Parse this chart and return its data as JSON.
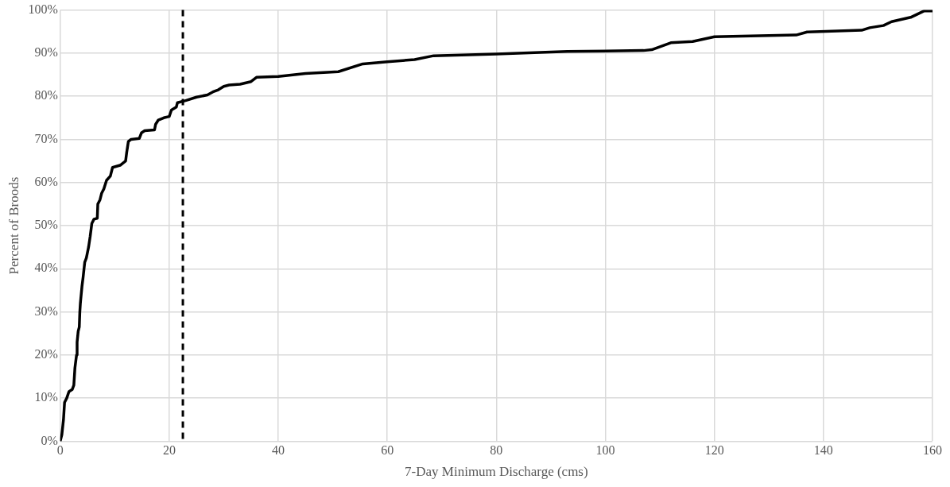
{
  "chart_data": {
    "type": "line",
    "xlabel": "7-Day Minimum Discharge (cms)",
    "ylabel": "Percent of Broods",
    "x": [
      0,
      0.3,
      0.6,
      0.8,
      1.2,
      1.6,
      2.2,
      2.5,
      2.7,
      3,
      3.1,
      3.3,
      3.5,
      3.6,
      3.7,
      4,
      4.2,
      4.5,
      4.8,
      5.2,
      5.5,
      5.8,
      6.2,
      6.8,
      6.9,
      7.3,
      7.6,
      8,
      8.5,
      9.2,
      9.6,
      11,
      12,
      12.2,
      12.5,
      13,
      14.5,
      14.9,
      15.5,
      17.3,
      17.5,
      18,
      19,
      20,
      20.4,
      21.3,
      21.5,
      23,
      25,
      27,
      28,
      29,
      30,
      31,
      33,
      35,
      36,
      40,
      45,
      51,
      55.5,
      60,
      65,
      68.5,
      80,
      93,
      107,
      108.5,
      112,
      116,
      120,
      135,
      137,
      147,
      148.5,
      151,
      152.5,
      156,
      158.5,
      160
    ],
    "series": [
      {
        "color": "#000000",
        "values": [
          0,
          1.5,
          5,
          9,
          10,
          11.5,
          12,
          13,
          17,
          20,
          23,
          25.5,
          26.5,
          30,
          32,
          36,
          38,
          41.5,
          42.5,
          45,
          47.5,
          50.5,
          51.5,
          51.7,
          55,
          56,
          57.5,
          58.5,
          60.5,
          61.5,
          63.5,
          64,
          65,
          67,
          69.5,
          70,
          70.2,
          71.5,
          72,
          72.2,
          73.5,
          74.5,
          75,
          75.3,
          76.8,
          77.5,
          78.5,
          79,
          79.8,
          80.3,
          81,
          81.5,
          82.3,
          82.6,
          82.8,
          83.4,
          84.4,
          84.6,
          85.3,
          85.7,
          87.5,
          88,
          88.5,
          89.4,
          89.8,
          90.4,
          90.6,
          90.8,
          92.4,
          92.7,
          93.8,
          94.2,
          94.9,
          95.3,
          95.9,
          96.4,
          97.3,
          98.3,
          99.8,
          99.8
        ]
      }
    ],
    "xlim": [
      0,
      160
    ],
    "xticks": [
      0,
      20,
      40,
      60,
      80,
      100,
      120,
      140,
      160
    ],
    "ylim": [
      0,
      100
    ],
    "yticks": [
      {
        "value": 0,
        "label": "0%"
      },
      {
        "value": 10,
        "label": "10%"
      },
      {
        "value": 20,
        "label": "20%"
      },
      {
        "value": 30,
        "label": "30%"
      },
      {
        "value": 40,
        "label": "40%"
      },
      {
        "value": 50,
        "label": "50%"
      },
      {
        "value": 60,
        "label": "60%"
      },
      {
        "value": 70,
        "label": "70%"
      },
      {
        "value": 80,
        "label": "80%"
      },
      {
        "value": 90,
        "label": "90%"
      },
      {
        "value": 100,
        "label": "100%"
      }
    ],
    "ref_lines": [
      {
        "axis": "x",
        "value": 22.5,
        "color": "#000000",
        "line_style": "dashed"
      }
    ],
    "grid": true,
    "legend": false,
    "marker": "none",
    "line_style": "solid"
  }
}
